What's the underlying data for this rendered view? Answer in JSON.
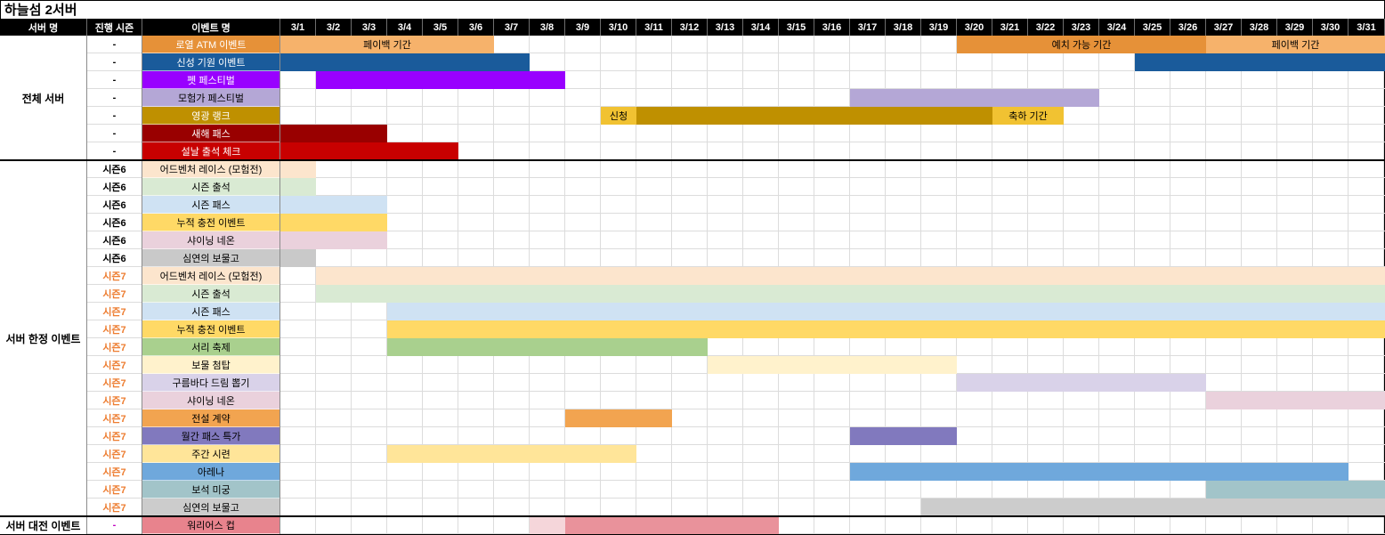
{
  "title": "하늘섬 2서버",
  "chart_data": {
    "type": "table",
    "subtype": "gantt-schedule",
    "title": "하늘섬 2서버",
    "columns": {
      "server": "서버 명",
      "season": "진행 시즌",
      "event": "이벤트 명"
    },
    "date_columns": [
      "3/1",
      "3/2",
      "3/3",
      "3/4",
      "3/5",
      "3/6",
      "3/7",
      "3/8",
      "3/9",
      "3/10",
      "3/11",
      "3/12",
      "3/13",
      "3/14",
      "3/15",
      "3/16",
      "3/17",
      "3/18",
      "3/19",
      "3/20",
      "3/21",
      "3/22",
      "3/23",
      "3/24",
      "3/25",
      "3/26",
      "3/27",
      "3/28",
      "3/29",
      "3/30",
      "3/31"
    ],
    "colors": {
      "header_bg": "#000000",
      "header_text": "#FFFFFF",
      "grid_line": "#DCDCDC",
      "season7_text": "#ED7D31",
      "section_divider": "#000000"
    },
    "sections": [
      {
        "name": "전체 서버",
        "rows": [
          {
            "season": "-",
            "event": "로열 ATM 이벤트",
            "label_bg": "#E69138",
            "label_text": "#FFFFFF",
            "bars": [
              {
                "start": 1,
                "end": 6,
                "color": "#F6B26B",
                "text": "페이백 기간",
                "text_color": "#000000"
              },
              {
                "start": 20,
                "end": 26,
                "color": "#E69138",
                "text": "예치 가능 기간",
                "text_color": "#000000"
              },
              {
                "start": 27,
                "end": 31,
                "color": "#F6B26B",
                "text": "페이백 기간",
                "text_color": "#000000"
              }
            ]
          },
          {
            "season": "-",
            "event": "신성 기원 이벤트",
            "label_bg": "#1A5B9B",
            "label_text": "#FFFFFF",
            "bars": [
              {
                "start": 1,
                "end": 7,
                "color": "#1A5B9B"
              },
              {
                "start": 25,
                "end": 31,
                "color": "#1A5B9B"
              }
            ]
          },
          {
            "season": "-",
            "event": "펫 페스티벌",
            "label_bg": "#9900FF",
            "label_text": "#FFFFFF",
            "bars": [
              {
                "start": 2,
                "end": 8,
                "color": "#9900FF"
              }
            ]
          },
          {
            "season": "-",
            "event": "모험가 페스티벌",
            "label_bg": "#B4A7D6",
            "label_text": "#000000",
            "bars": [
              {
                "start": 17,
                "end": 23,
                "color": "#B4A7D6"
              }
            ]
          },
          {
            "season": "-",
            "event": "영광 랭크",
            "label_bg": "#BF9000",
            "label_text": "#FFFFFF",
            "bars": [
              {
                "start": 10,
                "end": 10,
                "color": "#F1C232",
                "text": "신청",
                "text_color": "#000000"
              },
              {
                "start": 11,
                "end": 20,
                "color": "#BF9000"
              },
              {
                "start": 21,
                "end": 22,
                "color": "#F1C232",
                "text": "축하 기간",
                "text_color": "#000000"
              }
            ]
          },
          {
            "season": "-",
            "event": "새해 패스",
            "label_bg": "#990000",
            "label_text": "#FFFFFF",
            "bars": [
              {
                "start": 1,
                "end": 3,
                "color": "#990000"
              }
            ]
          },
          {
            "season": "-",
            "event": "설날 출석 체크",
            "label_bg": "#C80000",
            "label_text": "#FFFFFF",
            "bars": [
              {
                "start": 1,
                "end": 5,
                "color": "#C80000"
              }
            ]
          }
        ]
      },
      {
        "name": "서버 한정 이벤트",
        "rows": [
          {
            "season": "시즌6",
            "event": "어드벤처 레이스 (모험전)",
            "label_bg": "#FCE5CD",
            "label_text": "#000000",
            "bars": [
              {
                "start": 1,
                "end": 1,
                "color": "#FCE5CD"
              }
            ]
          },
          {
            "season": "시즌6",
            "event": "시즌 출석",
            "label_bg": "#D9EAD3",
            "label_text": "#000000",
            "bars": [
              {
                "start": 1,
                "end": 1,
                "color": "#D9EAD3"
              }
            ]
          },
          {
            "season": "시즌6",
            "event": "시즌 패스",
            "label_bg": "#CFE2F3",
            "label_text": "#000000",
            "bars": [
              {
                "start": 1,
                "end": 3,
                "color": "#CFE2F3"
              }
            ]
          },
          {
            "season": "시즌6",
            "event": "누적 충전 이벤트",
            "label_bg": "#FFD966",
            "label_text": "#000000",
            "bars": [
              {
                "start": 1,
                "end": 3,
                "color": "#FFD966"
              }
            ]
          },
          {
            "season": "시즌6",
            "event": "샤이닝 네온",
            "label_bg": "#EAD1DC",
            "label_text": "#000000",
            "bars": [
              {
                "start": 1,
                "end": 3,
                "color": "#EAD1DC"
              }
            ]
          },
          {
            "season": "시즌6",
            "event": "심연의 보물고",
            "label_bg": "#C9C9C9",
            "label_text": "#000000",
            "bars": [
              {
                "start": 1,
                "end": 1,
                "color": "#C9C9C9"
              }
            ]
          },
          {
            "season": "시즌7",
            "season_color": "#ED7D31",
            "event": "어드벤처 레이스 (모험전)",
            "label_bg": "#FCE5CD",
            "label_text": "#000000",
            "bars": [
              {
                "start": 2,
                "end": 31,
                "color": "#FCE5CD"
              }
            ]
          },
          {
            "season": "시즌7",
            "season_color": "#ED7D31",
            "event": "시즌 출석",
            "label_bg": "#D9EAD3",
            "label_text": "#000000",
            "bars": [
              {
                "start": 2,
                "end": 31,
                "color": "#D9EAD3"
              }
            ]
          },
          {
            "season": "시즌7",
            "season_color": "#ED7D31",
            "event": "시즌 패스",
            "label_bg": "#CFE2F3",
            "label_text": "#000000",
            "bars": [
              {
                "start": 4,
                "end": 31,
                "color": "#CFE2F3"
              }
            ]
          },
          {
            "season": "시즌7",
            "season_color": "#ED7D31",
            "event": "누적 충전 이벤트",
            "label_bg": "#FFD966",
            "label_text": "#000000",
            "bars": [
              {
                "start": 4,
                "end": 31,
                "color": "#FFD966"
              }
            ]
          },
          {
            "season": "시즌7",
            "season_color": "#ED7D31",
            "event": "서리 축제",
            "label_bg": "#A9D08E",
            "label_text": "#000000",
            "bars": [
              {
                "start": 4,
                "end": 12,
                "color": "#A9D08E"
              }
            ]
          },
          {
            "season": "시즌7",
            "season_color": "#ED7D31",
            "event": "보물 첨탑",
            "label_bg": "#FFF2CC",
            "label_text": "#000000",
            "bars": [
              {
                "start": 13,
                "end": 19,
                "color": "#FFF2CC"
              }
            ]
          },
          {
            "season": "시즌7",
            "season_color": "#ED7D31",
            "event": "구름바다 드림 뽑기",
            "label_bg": "#D9D2E9",
            "label_text": "#000000",
            "bars": [
              {
                "start": 20,
                "end": 26,
                "color": "#D9D2E9"
              }
            ]
          },
          {
            "season": "시즌7",
            "season_color": "#ED7D31",
            "event": "샤이닝 네온",
            "label_bg": "#EAD1DC",
            "label_text": "#000000",
            "bars": [
              {
                "start": 27,
                "end": 31,
                "color": "#EAD1DC"
              }
            ]
          },
          {
            "season": "시즌7",
            "season_color": "#ED7D31",
            "event": "전설 계약",
            "label_bg": "#F2A450",
            "label_text": "#000000",
            "bars": [
              {
                "start": 9,
                "end": 11,
                "color": "#F2A450"
              }
            ]
          },
          {
            "season": "시즌7",
            "season_color": "#ED7D31",
            "event": "월간 패스 특가",
            "label_bg": "#8179BE",
            "label_text": "#000000",
            "bars": [
              {
                "start": 17,
                "end": 19,
                "color": "#8179BE"
              }
            ]
          },
          {
            "season": "시즌7",
            "season_color": "#ED7D31",
            "event": "주간 시련",
            "label_bg": "#FFE599",
            "label_text": "#000000",
            "bars": [
              {
                "start": 4,
                "end": 10,
                "color": "#FFE599"
              }
            ]
          },
          {
            "season": "시즌7",
            "season_color": "#ED7D31",
            "event": "아레나",
            "label_bg": "#6FA8DC",
            "label_text": "#000000",
            "bars": [
              {
                "start": 17,
                "end": 30,
                "color": "#6FA8DC"
              }
            ]
          },
          {
            "season": "시즌7",
            "season_color": "#ED7D31",
            "event": "보석 미궁",
            "label_bg": "#A2C4C9",
            "label_text": "#000000",
            "bars": [
              {
                "start": 27,
                "end": 31,
                "color": "#A2C4C9"
              }
            ]
          },
          {
            "season": "시즌7",
            "season_color": "#ED7D31",
            "event": "심연의 보물고",
            "label_bg": "#CCCCCC",
            "label_text": "#000000",
            "bars": [
              {
                "start": 19,
                "end": 31,
                "color": "#CCCCCC"
              }
            ]
          }
        ]
      },
      {
        "name": "서버 대전 이벤트",
        "rows": [
          {
            "season": "-",
            "season_color": "#C000C0",
            "event": "워리어스 컵",
            "label_bg": "#E8838D",
            "label_text": "#000000",
            "bars": [
              {
                "start": 8,
                "end": 8,
                "color": "#F5D6DA"
              },
              {
                "start": 9,
                "end": 14,
                "color": "#E9929B"
              }
            ]
          }
        ]
      }
    ]
  }
}
